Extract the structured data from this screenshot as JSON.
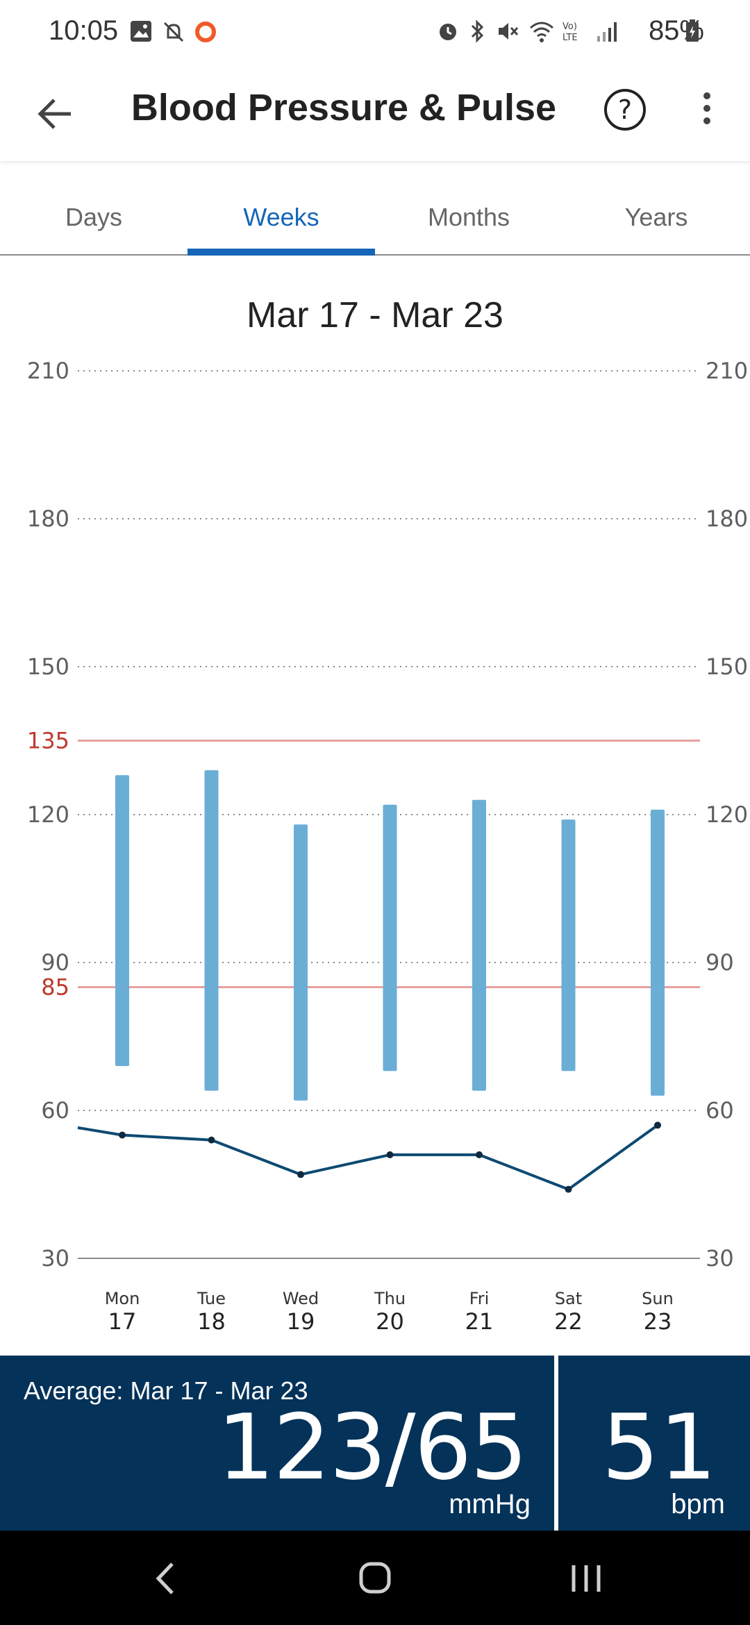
{
  "status_bar": {
    "time": "10:05",
    "battery": "85%",
    "icons": [
      "image-icon",
      "notifications-off-icon",
      "record-icon",
      "alarm-icon",
      "bluetooth-icon",
      "mute-icon",
      "wifi-icon",
      "volte-icon",
      "signal-icon",
      "battery-charging-icon"
    ]
  },
  "app_bar": {
    "title": "Blood Pressure & Pulse",
    "back_icon": "arrow-back-icon",
    "help_icon": "help-icon",
    "more_icon": "more-vert-icon"
  },
  "tabs": [
    {
      "label": "Days",
      "active": false
    },
    {
      "label": "Weeks",
      "active": true
    },
    {
      "label": "Months",
      "active": false
    },
    {
      "label": "Years",
      "active": false
    }
  ],
  "range_title": "Mar 17 - Mar 23",
  "chart_data": {
    "type": "bar",
    "y_ticks": [
      210,
      180,
      150,
      120,
      90,
      60,
      30
    ],
    "threshold_lines": [
      {
        "value": 135,
        "label": "135",
        "color": "#e8a0a0"
      },
      {
        "value": 85,
        "label": "85",
        "color": "#e8a0a0"
      }
    ],
    "ylim": [
      30,
      210
    ],
    "grid": true,
    "categories": [
      {
        "day": "Mon",
        "date": "17"
      },
      {
        "day": "Tue",
        "date": "18"
      },
      {
        "day": "Wed",
        "date": "19"
      },
      {
        "day": "Thu",
        "date": "20"
      },
      {
        "day": "Fri",
        "date": "21"
      },
      {
        "day": "Sat",
        "date": "22"
      },
      {
        "day": "Sun",
        "date": "23"
      }
    ],
    "series": [
      {
        "kind": "range_bars",
        "color": "#6aaed6",
        "systolic": [
          128,
          129,
          118,
          122,
          123,
          119,
          121
        ],
        "diastolic": [
          69,
          64,
          62,
          68,
          64,
          68,
          63
        ]
      },
      {
        "kind": "line",
        "color": "#0d4a72",
        "values": [
          55,
          54,
          47,
          51,
          51,
          44,
          57
        ]
      }
    ]
  },
  "average": {
    "label": "Average: Mar 17 - Mar 23",
    "bp_value": "123/65",
    "bp_unit": "mmHg",
    "pulse_value": "51",
    "pulse_unit": "bpm"
  },
  "nav_bar": {
    "icons": [
      "nav-back-icon",
      "nav-home-icon",
      "nav-recents-icon"
    ]
  },
  "colors": {
    "accent": "#1565b8",
    "panel": "#043259",
    "threshold_label": "#c0392b"
  }
}
